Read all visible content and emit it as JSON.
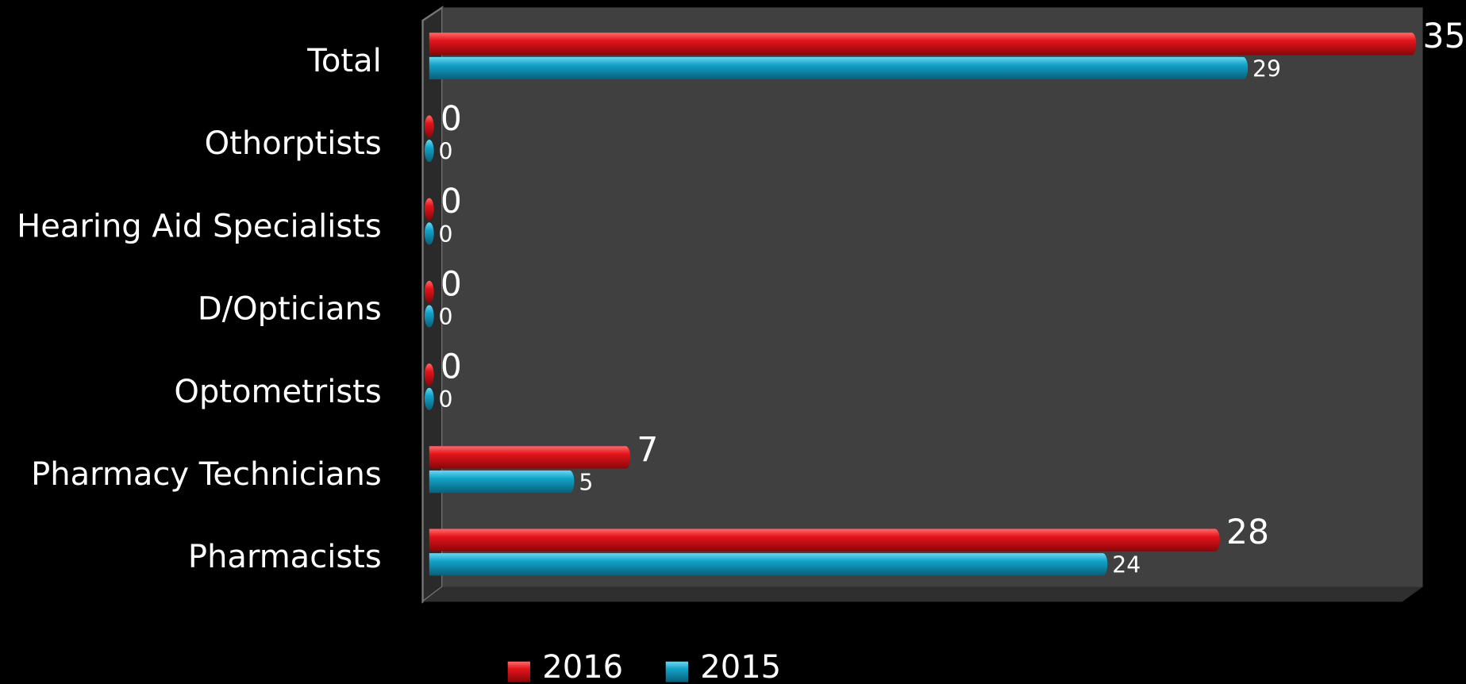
{
  "chart_data": {
    "type": "bar",
    "orientation": "horizontal",
    "categories": [
      "Total",
      "Othorptists",
      "Hearing Aid Specialists",
      "D/Opticians",
      "Optometrists",
      "Pharmacy Technicians",
      "Pharmacists"
    ],
    "series": [
      {
        "name": "2016",
        "color": "#e3141b",
        "values": [
          35,
          0,
          0,
          0,
          0,
          7,
          28
        ]
      },
      {
        "name": "2015",
        "color": "#13a3c9",
        "values": [
          29,
          0,
          0,
          0,
          0,
          5,
          24
        ]
      }
    ],
    "xlim": [
      0,
      35
    ],
    "legend": "bottom"
  }
}
